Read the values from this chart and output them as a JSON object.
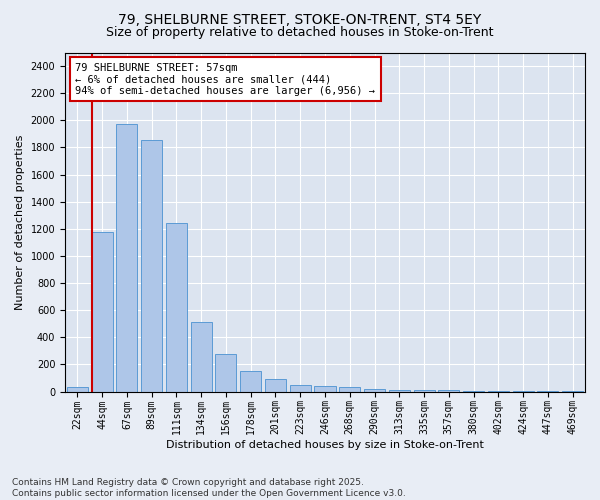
{
  "title1": "79, SHELBURNE STREET, STOKE-ON-TRENT, ST4 5EY",
  "title2": "Size of property relative to detached houses in Stoke-on-Trent",
  "xlabel": "Distribution of detached houses by size in Stoke-on-Trent",
  "ylabel": "Number of detached properties",
  "categories": [
    "22sqm",
    "44sqm",
    "67sqm",
    "89sqm",
    "111sqm",
    "134sqm",
    "156sqm",
    "178sqm",
    "201sqm",
    "223sqm",
    "246sqm",
    "268sqm",
    "290sqm",
    "313sqm",
    "335sqm",
    "357sqm",
    "380sqm",
    "402sqm",
    "424sqm",
    "447sqm",
    "469sqm"
  ],
  "values": [
    30,
    1175,
    1975,
    1855,
    1240,
    515,
    275,
    155,
    90,
    50,
    42,
    35,
    22,
    15,
    10,
    8,
    5,
    3,
    2,
    1,
    1
  ],
  "bar_color": "#aec6e8",
  "bar_edge_color": "#5b9bd5",
  "vline_x": 0.575,
  "vline_color": "#cc0000",
  "annotation_text": "79 SHELBURNE STREET: 57sqm\n← 6% of detached houses are smaller (444)\n94% of semi-detached houses are larger (6,956) →",
  "annotation_box_color": "#ffffff",
  "annotation_box_edge": "#cc0000",
  "ylim": [
    0,
    2500
  ],
  "yticks": [
    0,
    200,
    400,
    600,
    800,
    1000,
    1200,
    1400,
    1600,
    1800,
    2000,
    2200,
    2400
  ],
  "background_color": "#e8edf5",
  "plot_bg_color": "#dce4f0",
  "footer": "Contains HM Land Registry data © Crown copyright and database right 2025.\nContains public sector information licensed under the Open Government Licence v3.0.",
  "title1_fontsize": 10,
  "title2_fontsize": 9,
  "xlabel_fontsize": 8,
  "ylabel_fontsize": 8,
  "tick_fontsize": 7,
  "annotation_fontsize": 7.5,
  "footer_fontsize": 6.5
}
